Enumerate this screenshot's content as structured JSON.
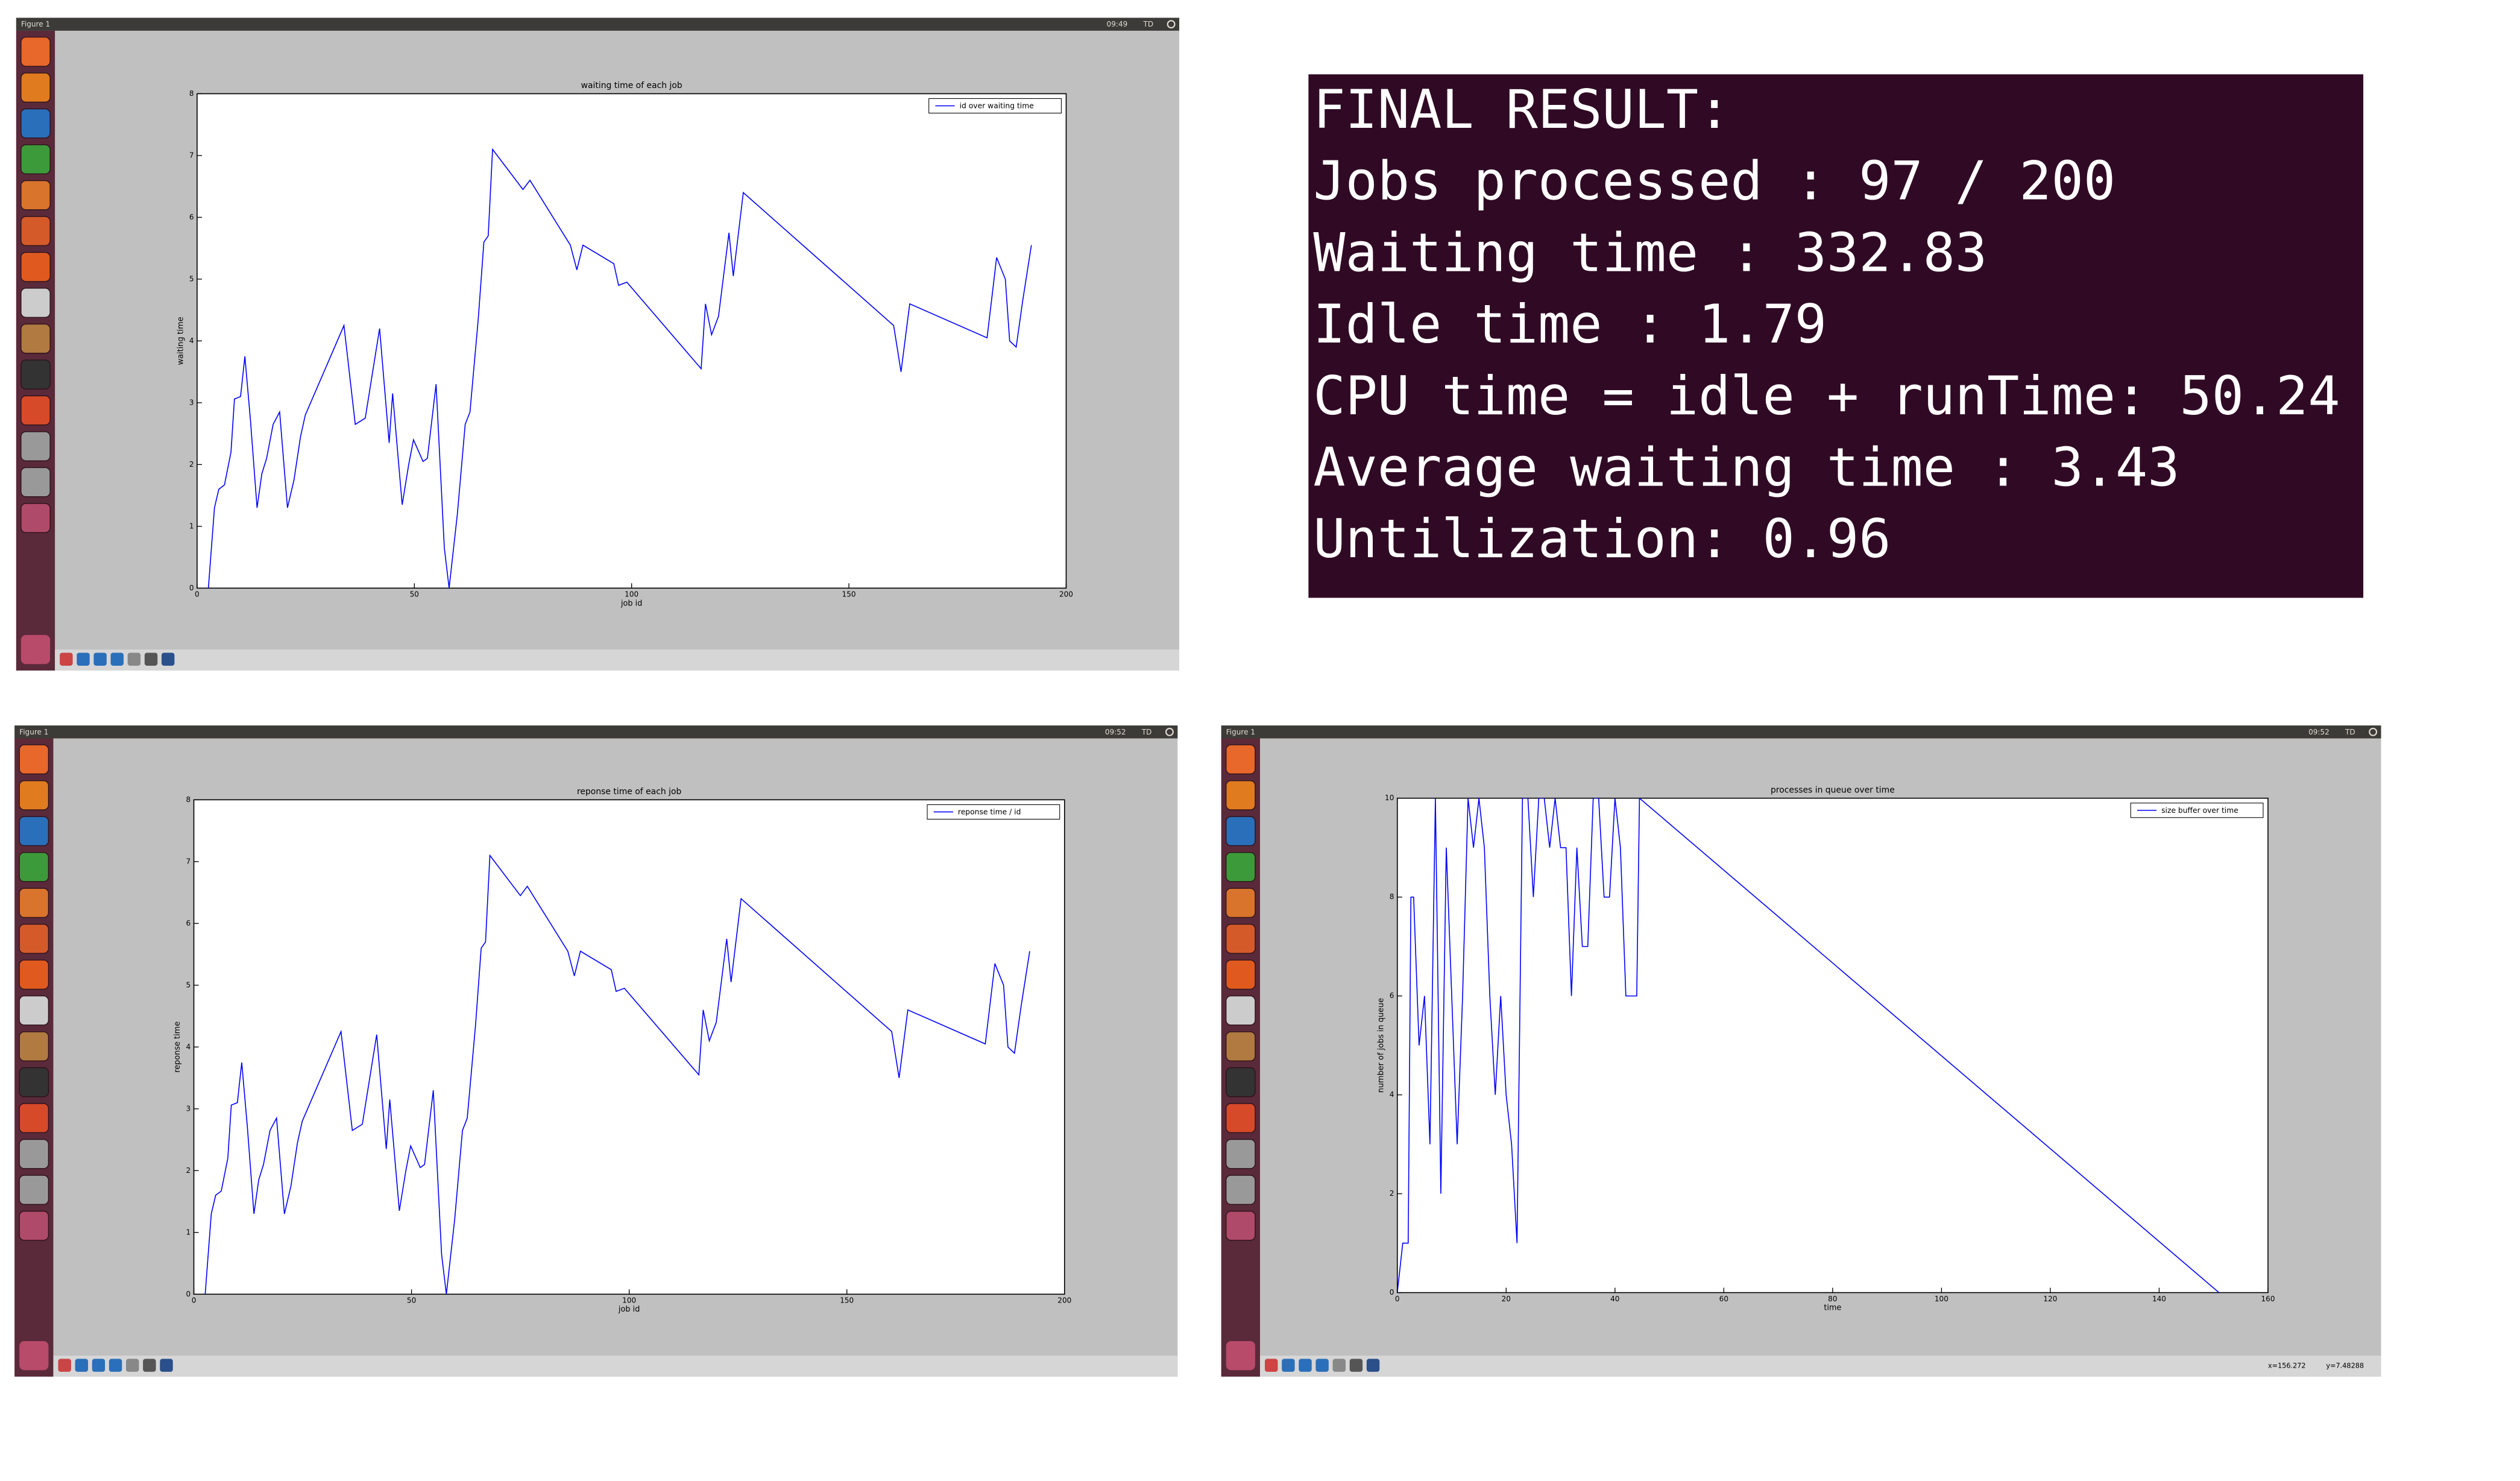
{
  "windows": [
    {
      "title": "Figure 1",
      "clock": "09:49",
      "user": "TD"
    },
    {
      "title": "Figure 1",
      "clock": "09:52",
      "user": "TD"
    },
    {
      "title": "Figure 1",
      "clock": "09:52",
      "user": "TD",
      "status": [
        "x=156.272",
        "y=7.48288"
      ]
    }
  ],
  "terminal": {
    "lines": [
      "FINAL RESULT:",
      "Jobs processed : 97 / 200",
      "Waiting time : 332.83",
      "Idle time : 1.79",
      "CPU time = idle + runTime: 50.24",
      "Average waiting time : 3.43",
      "Untilization: 0.96"
    ]
  },
  "chart_data": [
    {
      "type": "line",
      "title": "waiting time of each job",
      "xlabel": "job id",
      "ylabel": "waiting time",
      "legend": "upper right",
      "x": [
        2.6,
        4,
        5,
        6.3,
        7.8,
        8.6,
        10,
        11,
        12.3,
        13.8,
        14.9,
        16,
        17.5,
        19,
        20.8,
        22.3,
        23.8,
        24.9,
        33.8,
        36.4,
        38.7,
        42,
        44.2,
        45,
        47.2,
        48.7,
        49.8,
        52,
        53,
        55,
        56.9,
        58,
        59.9,
        61.7,
        62.8,
        64.7,
        66,
        67,
        68,
        75,
        76.6,
        85.9,
        87.4,
        88.8,
        95.9,
        97,
        98.9,
        116,
        117,
        118.4,
        120,
        122.4,
        123.4,
        125.7,
        160.3,
        162,
        164,
        181.8,
        184,
        186,
        187,
        188.5,
        190,
        192
      ],
      "series": [
        {
          "name": "id over waiting time",
          "color": "#0000ff",
          "values": [
            0,
            1.3,
            1.6,
            1.67,
            2.2,
            3.06,
            3.1,
            3.75,
            2.7,
            1.3,
            1.85,
            2.1,
            2.65,
            2.85,
            1.3,
            1.75,
            2.45,
            2.8,
            4.25,
            2.65,
            2.75,
            4.2,
            2.35,
            3.15,
            1.35,
            2.0,
            2.4,
            2.05,
            2.1,
            3.3,
            0.65,
            0,
            1.2,
            2.65,
            2.85,
            4.35,
            5.6,
            5.7,
            7.1,
            6.45,
            6.6,
            5.55,
            5.15,
            5.55,
            5.25,
            4.9,
            4.95,
            3.55,
            4.6,
            4.1,
            4.4,
            5.75,
            5.05,
            6.4,
            4.25,
            3.5,
            4.6,
            4.05,
            5.35,
            5.0,
            4.0,
            3.9,
            4.65,
            5.55
          ]
        }
      ],
      "xlim": [
        0,
        200
      ],
      "ylim": [
        0,
        8
      ],
      "xticks": [
        0,
        50,
        100,
        150,
        200
      ],
      "yticks": [
        0,
        1,
        2,
        3,
        4,
        5,
        6,
        7,
        8
      ]
    },
    {
      "type": "line",
      "title": "reponse time of each job",
      "xlabel": "job id",
      "ylabel": "reponse time",
      "legend": "upper right",
      "x": [
        2.6,
        4,
        5,
        6.3,
        7.8,
        8.6,
        10,
        11,
        12.3,
        13.8,
        14.9,
        16,
        17.5,
        19,
        20.8,
        22.3,
        23.8,
        24.9,
        33.8,
        36.4,
        38.7,
        42,
        44.2,
        45,
        47.2,
        48.7,
        49.8,
        52,
        53,
        55,
        56.9,
        58,
        59.9,
        61.7,
        62.8,
        64.7,
        66,
        67,
        68,
        75,
        76.6,
        85.9,
        87.4,
        88.8,
        95.9,
        97,
        98.9,
        116,
        117,
        118.4,
        120,
        122.4,
        123.4,
        125.7,
        160.3,
        162,
        164,
        181.8,
        184,
        186,
        187,
        188.5,
        190,
        192
      ],
      "series": [
        {
          "name": "reponse time / id",
          "color": "#0000ff",
          "values": [
            0,
            1.3,
            1.6,
            1.67,
            2.2,
            3.06,
            3.1,
            3.75,
            2.7,
            1.3,
            1.85,
            2.1,
            2.65,
            2.85,
            1.3,
            1.75,
            2.45,
            2.8,
            4.25,
            2.65,
            2.75,
            4.2,
            2.35,
            3.15,
            1.35,
            2.0,
            2.4,
            2.05,
            2.1,
            3.3,
            0.65,
            0,
            1.2,
            2.65,
            2.85,
            4.35,
            5.6,
            5.7,
            7.1,
            6.45,
            6.6,
            5.55,
            5.15,
            5.55,
            5.25,
            4.9,
            4.95,
            3.55,
            4.6,
            4.1,
            4.4,
            5.75,
            5.05,
            6.4,
            4.25,
            3.5,
            4.6,
            4.05,
            5.35,
            5.0,
            4.0,
            3.9,
            4.65,
            5.55
          ]
        }
      ],
      "xlim": [
        0,
        200
      ],
      "ylim": [
        0,
        8
      ],
      "xticks": [
        0,
        50,
        100,
        150,
        200
      ],
      "yticks": [
        0,
        1,
        2,
        3,
        4,
        5,
        6,
        7,
        8
      ]
    },
    {
      "type": "line",
      "title": "processes in queue over time",
      "xlabel": "time",
      "ylabel": "number of jobs in queue",
      "legend": "upper right",
      "x": [
        0,
        1,
        2,
        2.5,
        3,
        4,
        5,
        6,
        7,
        8,
        9,
        10,
        11,
        12,
        13,
        14,
        15,
        16,
        17,
        18,
        19,
        20,
        21,
        22,
        23,
        24,
        25,
        26,
        27,
        28,
        29,
        30,
        31,
        32,
        33,
        34,
        35,
        36,
        37,
        38,
        39,
        40,
        41,
        42,
        43,
        44,
        44.5,
        151
      ],
      "series": [
        {
          "name": "size buffer over time",
          "color": "#0000ff",
          "values": [
            0,
            1,
            1,
            8,
            8,
            5,
            6,
            3,
            10,
            2,
            9,
            6,
            3,
            6,
            10,
            9,
            10,
            9,
            6,
            4,
            6,
            4,
            3,
            1,
            10,
            10,
            8,
            10,
            10,
            9,
            10,
            9,
            9,
            6,
            9,
            7,
            7,
            10,
            10,
            8,
            8,
            10,
            9,
            6,
            6,
            6,
            10,
            0
          ]
        }
      ],
      "xlim": [
        0,
        160
      ],
      "ylim": [
        0,
        10
      ],
      "xticks": [
        0,
        20,
        40,
        60,
        80,
        100,
        120,
        140,
        160
      ],
      "yticks": [
        0,
        2,
        4,
        6,
        8,
        10
      ]
    }
  ]
}
